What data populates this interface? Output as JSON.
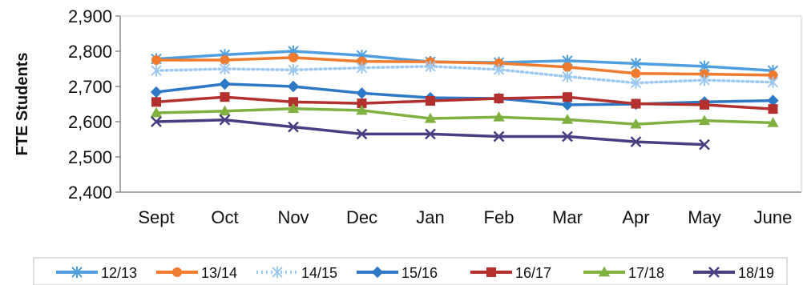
{
  "chart_data": {
    "type": "line",
    "ylabel": "FTE Students",
    "xlabel": "",
    "ylim": [
      2400,
      2900
    ],
    "yticks": [
      2400,
      2500,
      2600,
      2700,
      2800,
      2900
    ],
    "ytick_labels": [
      "2,400",
      "2,500",
      "2,600",
      "2,700",
      "2,800",
      "2,900"
    ],
    "categories": [
      "Sept",
      "Oct",
      "Nov",
      "Dec",
      "Jan",
      "Feb",
      "Mar",
      "Apr",
      "May",
      "June"
    ],
    "legend_position": "bottom",
    "grid": false,
    "series": [
      {
        "name": "12/13",
        "color": "#4f9fe0",
        "marker": "star",
        "dashed": false,
        "values": [
          2778,
          2790,
          2800,
          2788,
          2770,
          2768,
          2773,
          2765,
          2757,
          2745
        ]
      },
      {
        "name": "13/14",
        "color": "#f07a2e",
        "marker": "circle",
        "dashed": false,
        "values": [
          2775,
          2775,
          2782,
          2771,
          2770,
          2766,
          2755,
          2737,
          2735,
          2732
        ]
      },
      {
        "name": "14/15",
        "color": "#9cc8f2",
        "marker": "star",
        "dashed": true,
        "values": [
          2745,
          2750,
          2747,
          2753,
          2757,
          2748,
          2728,
          2710,
          2718,
          2712
        ]
      },
      {
        "name": "15/16",
        "color": "#2e79c6",
        "marker": "diamond",
        "dashed": false,
        "values": [
          2684,
          2707,
          2700,
          2681,
          2668,
          2666,
          2648,
          2650,
          2656,
          2660
        ]
      },
      {
        "name": "16/17",
        "color": "#b3302e",
        "marker": "square",
        "dashed": false,
        "values": [
          2656,
          2670,
          2656,
          2652,
          2659,
          2666,
          2670,
          2651,
          2648,
          2636
        ]
      },
      {
        "name": "17/18",
        "color": "#7fb040",
        "marker": "triangle",
        "dashed": false,
        "values": [
          2625,
          2630,
          2637,
          2632,
          2609,
          2613,
          2606,
          2593,
          2603,
          2597
        ]
      },
      {
        "name": "18/19",
        "color": "#4b3d82",
        "marker": "x",
        "dashed": false,
        "values": [
          2600,
          2605,
          2585,
          2565,
          2565,
          2558,
          2558,
          2543,
          2535,
          null
        ]
      }
    ]
  }
}
